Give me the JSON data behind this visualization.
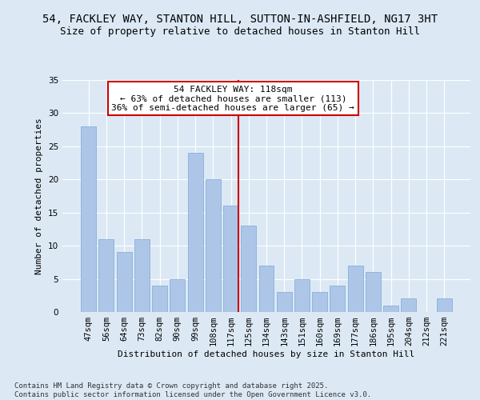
{
  "title": "54, FACKLEY WAY, STANTON HILL, SUTTON-IN-ASHFIELD, NG17 3HT",
  "subtitle": "Size of property relative to detached houses in Stanton Hill",
  "xlabel": "Distribution of detached houses by size in Stanton Hill",
  "ylabel": "Number of detached properties",
  "categories": [
    "47sqm",
    "56sqm",
    "64sqm",
    "73sqm",
    "82sqm",
    "90sqm",
    "99sqm",
    "108sqm",
    "117sqm",
    "125sqm",
    "134sqm",
    "143sqm",
    "151sqm",
    "160sqm",
    "169sqm",
    "177sqm",
    "186sqm",
    "195sqm",
    "204sqm",
    "212sqm",
    "221sqm"
  ],
  "values": [
    28,
    11,
    9,
    11,
    4,
    5,
    24,
    20,
    16,
    13,
    7,
    3,
    5,
    3,
    4,
    7,
    6,
    1,
    2,
    0,
    2
  ],
  "bar_color": "#adc6e8",
  "bar_edge_color": "#7ba7d4",
  "annotation_text": "54 FACKLEY WAY: 118sqm\n← 63% of detached houses are smaller (113)\n36% of semi-detached houses are larger (65) →",
  "annotation_box_color": "#ffffff",
  "annotation_box_edge": "#cc0000",
  "vline_color": "#cc0000",
  "ylim": [
    0,
    35
  ],
  "yticks": [
    0,
    5,
    10,
    15,
    20,
    25,
    30,
    35
  ],
  "bg_color": "#dce9f5",
  "grid_color": "#ffffff",
  "footer": "Contains HM Land Registry data © Crown copyright and database right 2025.\nContains public sector information licensed under the Open Government Licence v3.0.",
  "title_fontsize": 10,
  "subtitle_fontsize": 9,
  "axis_label_fontsize": 8,
  "tick_fontsize": 7.5,
  "annotation_fontsize": 8,
  "footer_fontsize": 6.5,
  "ylabel_fontsize": 8
}
